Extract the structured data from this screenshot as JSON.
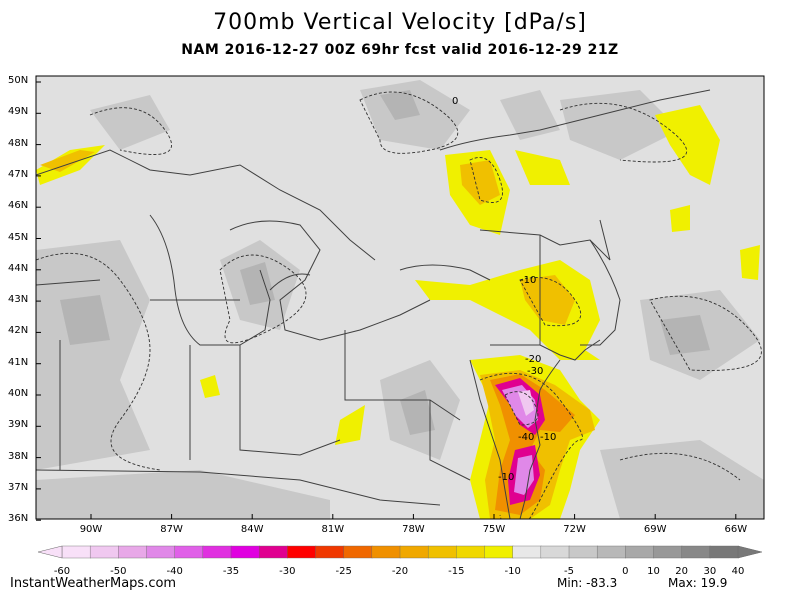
{
  "title": "700mb Vertical Velocity [dPa/s]",
  "subtitle": "NAM 2016-12-27 00Z 69hr fcst valid 2016-12-29 21Z",
  "lat_labels": [
    "50N",
    "49N",
    "48N",
    "47N",
    "46N",
    "45N",
    "44N",
    "43N",
    "42N",
    "41N",
    "40N",
    "39N",
    "38N",
    "37N",
    "36N"
  ],
  "lon_labels": [
    "90W",
    "87W",
    "84W",
    "81W",
    "78W",
    "75W",
    "72W",
    "69W",
    "66W"
  ],
  "contour_labels": [
    "0",
    "-10",
    "-20",
    "-30",
    "-40",
    "-10",
    "-10"
  ],
  "colorbar": {
    "ticks": [
      "-60",
      "-50",
      "-40",
      "-35",
      "-30",
      "-25",
      "-20",
      "-15",
      "-10",
      "-5",
      "0",
      "10",
      "20",
      "30",
      "40"
    ],
    "colors": [
      "#f8e0f8",
      "#f0c8f0",
      "#e8a8e8",
      "#e088e8",
      "#e060e8",
      "#e030e0",
      "#e000e0",
      "#e00090",
      "#ff0000",
      "#f03800",
      "#f06800",
      "#f09000",
      "#f0a800",
      "#f0c000",
      "#f0d800",
      "#f0f000",
      "#e8e8e8",
      "#d8d8d8",
      "#c8c8c8",
      "#b8b8b8",
      "#a8a8a8",
      "#989898",
      "#888888",
      "#787878"
    ]
  },
  "footer": {
    "site": "InstantWeatherMaps.com",
    "min_label": "Min: -83.3",
    "max_label": "Max: 19.9"
  }
}
